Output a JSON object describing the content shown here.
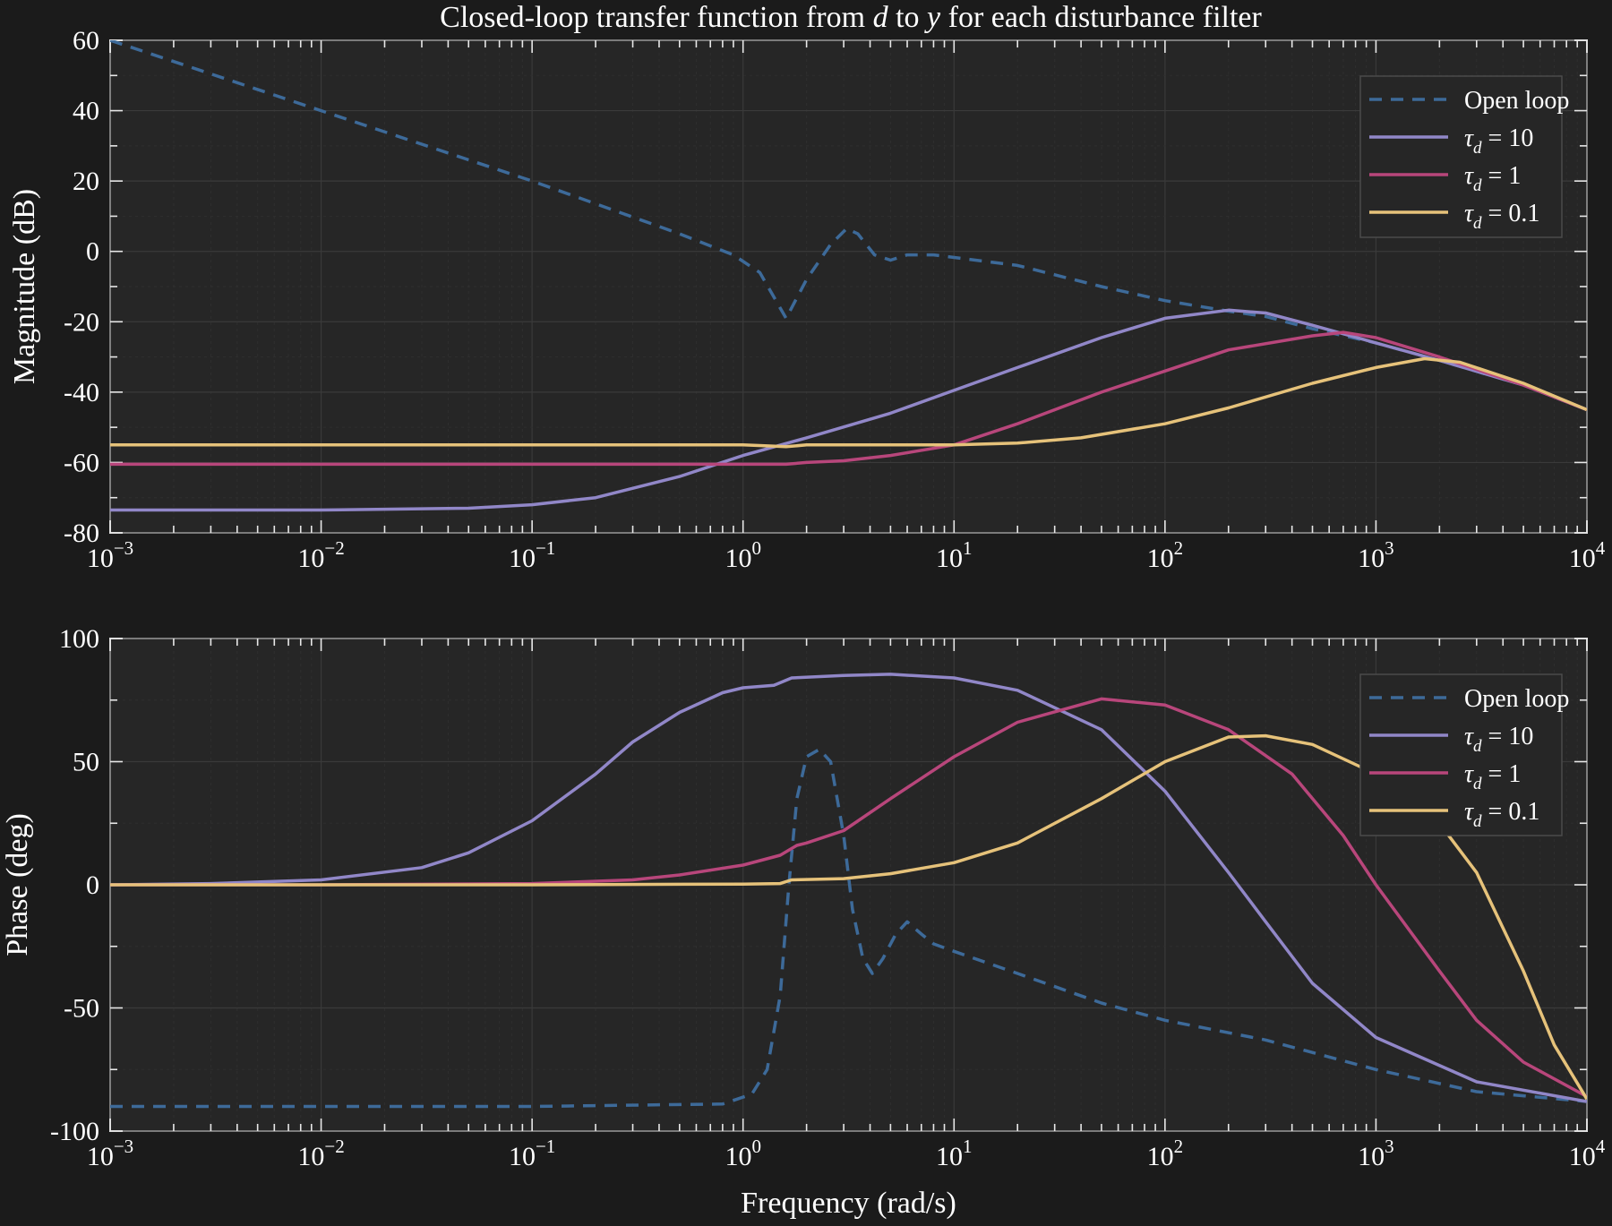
{
  "title_parts": [
    "Closed-loop transfer function from ",
    "d",
    " to ",
    "y",
    " for each disturbance filter"
  ],
  "colors": {
    "open_loop": "#3d6a99",
    "tau10": "#9187c8",
    "tau1": "#b8467b",
    "tau01": "#e6c27a"
  },
  "chart_data": [
    {
      "type": "line",
      "name": "magnitude",
      "ylabel": "Magnitude (dB)",
      "xlabel": "",
      "xscale": "log",
      "xlim": [
        0.001,
        10000
      ],
      "ylim": [
        -80,
        60
      ],
      "yticks": [
        -80,
        -60,
        -40,
        -20,
        0,
        20,
        40,
        60
      ],
      "xtick_labels": [
        {
          "base": "10",
          "exp": "−3"
        },
        {
          "base": "10",
          "exp": "−2"
        },
        {
          "base": "10",
          "exp": "−1"
        },
        {
          "base": "10",
          "exp": "0"
        },
        {
          "base": "10",
          "exp": "1"
        },
        {
          "base": "10",
          "exp": "2"
        },
        {
          "base": "10",
          "exp": "3"
        },
        {
          "base": "10",
          "exp": "4"
        }
      ],
      "grid": true,
      "legend_position": "top-right",
      "series": [
        {
          "name": "Open loop",
          "label_sym": "",
          "label_rest": "Open loop",
          "color_key": "open_loop",
          "dashed": true,
          "points": [
            [
              0.001,
              60
            ],
            [
              0.01,
              40
            ],
            [
              0.1,
              20
            ],
            [
              0.5,
              5
            ],
            [
              0.9,
              -1
            ],
            [
              1.2,
              -6
            ],
            [
              1.6,
              -19
            ],
            [
              2.0,
              -8
            ],
            [
              2.6,
              2
            ],
            [
              3.1,
              6.5
            ],
            [
              3.5,
              5
            ],
            [
              4.2,
              -1
            ],
            [
              5,
              -2.5
            ],
            [
              6,
              -1
            ],
            [
              8,
              -1
            ],
            [
              20,
              -4
            ],
            [
              50,
              -10
            ],
            [
              100,
              -14
            ],
            [
              200,
              -17
            ],
            [
              300,
              -18.5
            ],
            [
              500,
              -22
            ],
            [
              1000,
              -26
            ],
            [
              2000,
              -31
            ],
            [
              5000,
              -38
            ],
            [
              10000,
              -45
            ]
          ]
        },
        {
          "name": "τd = 10",
          "label_sym": "τ",
          "label_sub": "d",
          "label_rest": " = 10",
          "color_key": "tau10",
          "dashed": false,
          "points": [
            [
              0.001,
              -73.5
            ],
            [
              0.01,
              -73.5
            ],
            [
              0.05,
              -73
            ],
            [
              0.1,
              -72
            ],
            [
              0.2,
              -70
            ],
            [
              0.5,
              -64
            ],
            [
              1,
              -58
            ],
            [
              2,
              -53
            ],
            [
              5,
              -46
            ],
            [
              10,
              -39.5
            ],
            [
              20,
              -33
            ],
            [
              50,
              -24.5
            ],
            [
              100,
              -19
            ],
            [
              200,
              -16.7
            ],
            [
              300,
              -17.5
            ],
            [
              500,
              -21
            ],
            [
              1000,
              -26
            ],
            [
              2000,
              -31
            ],
            [
              5000,
              -38
            ],
            [
              10000,
              -45
            ]
          ]
        },
        {
          "name": "τd = 1",
          "label_sym": "τ",
          "label_sub": "d",
          "label_rest": " = 1",
          "color_key": "tau1",
          "dashed": false,
          "points": [
            [
              0.001,
              -60.5
            ],
            [
              0.1,
              -60.5
            ],
            [
              1,
              -60.5
            ],
            [
              1.6,
              -60.5
            ],
            [
              2,
              -60
            ],
            [
              3,
              -59.5
            ],
            [
              5,
              -58
            ],
            [
              10,
              -55
            ],
            [
              20,
              -49
            ],
            [
              50,
              -40
            ],
            [
              100,
              -34
            ],
            [
              200,
              -28
            ],
            [
              500,
              -24
            ],
            [
              700,
              -23
            ],
            [
              1000,
              -24.5
            ],
            [
              2000,
              -30
            ],
            [
              5000,
              -38
            ],
            [
              10000,
              -45
            ]
          ]
        },
        {
          "name": "τd = 0.1",
          "label_sym": "τ",
          "label_sub": "d",
          "label_rest": " = 0.1",
          "color_key": "tau01",
          "dashed": false,
          "points": [
            [
              0.001,
              -55
            ],
            [
              0.1,
              -55
            ],
            [
              1,
              -55
            ],
            [
              1.6,
              -55.5
            ],
            [
              2,
              -55
            ],
            [
              10,
              -55
            ],
            [
              20,
              -54.5
            ],
            [
              40,
              -53
            ],
            [
              100,
              -49
            ],
            [
              200,
              -44.5
            ],
            [
              500,
              -37.5
            ],
            [
              1000,
              -33
            ],
            [
              1700,
              -30.5
            ],
            [
              2500,
              -31.5
            ],
            [
              5000,
              -37.5
            ],
            [
              10000,
              -45
            ]
          ]
        }
      ]
    },
    {
      "type": "line",
      "name": "phase",
      "ylabel": "Phase (deg)",
      "xlabel": "Frequency (rad/s)",
      "xscale": "log",
      "xlim": [
        0.001,
        10000
      ],
      "ylim": [
        -100,
        100
      ],
      "yticks": [
        -100,
        -50,
        0,
        50,
        100
      ],
      "xtick_labels": [
        {
          "base": "10",
          "exp": "−3"
        },
        {
          "base": "10",
          "exp": "−2"
        },
        {
          "base": "10",
          "exp": "−1"
        },
        {
          "base": "10",
          "exp": "0"
        },
        {
          "base": "10",
          "exp": "1"
        },
        {
          "base": "10",
          "exp": "2"
        },
        {
          "base": "10",
          "exp": "3"
        },
        {
          "base": "10",
          "exp": "4"
        }
      ],
      "grid": true,
      "legend_position": "top-right",
      "series": [
        {
          "name": "Open loop",
          "label_sym": "",
          "label_rest": "Open loop",
          "color_key": "open_loop",
          "dashed": true,
          "points": [
            [
              0.001,
              -90
            ],
            [
              0.1,
              -90
            ],
            [
              0.8,
              -89
            ],
            [
              1.1,
              -85
            ],
            [
              1.3,
              -75
            ],
            [
              1.5,
              -45
            ],
            [
              1.65,
              0
            ],
            [
              1.8,
              35
            ],
            [
              2.0,
              52
            ],
            [
              2.3,
              55
            ],
            [
              2.6,
              50
            ],
            [
              3.0,
              20
            ],
            [
              3.3,
              -10
            ],
            [
              3.7,
              -30
            ],
            [
              4.1,
              -36
            ],
            [
              4.6,
              -30
            ],
            [
              5.3,
              -20
            ],
            [
              6,
              -15
            ],
            [
              7,
              -20
            ],
            [
              8,
              -24
            ],
            [
              10,
              -27
            ],
            [
              20,
              -36
            ],
            [
              50,
              -48
            ],
            [
              100,
              -55
            ],
            [
              300,
              -63
            ],
            [
              1000,
              -75
            ],
            [
              3000,
              -84
            ],
            [
              10000,
              -88
            ]
          ]
        },
        {
          "name": "τd = 10",
          "label_sym": "τ",
          "label_sub": "d",
          "label_rest": " = 10",
          "color_key": "tau10",
          "dashed": false,
          "points": [
            [
              0.001,
              0
            ],
            [
              0.003,
              0.5
            ],
            [
              0.01,
              2
            ],
            [
              0.03,
              7
            ],
            [
              0.05,
              13
            ],
            [
              0.1,
              26
            ],
            [
              0.2,
              45
            ],
            [
              0.3,
              58
            ],
            [
              0.5,
              70
            ],
            [
              0.8,
              78
            ],
            [
              1,
              80
            ],
            [
              1.4,
              81
            ],
            [
              1.7,
              84
            ],
            [
              3,
              85
            ],
            [
              5,
              85.5
            ],
            [
              10,
              84
            ],
            [
              20,
              79
            ],
            [
              50,
              63
            ],
            [
              100,
              38
            ],
            [
              200,
              5
            ],
            [
              300,
              -15
            ],
            [
              500,
              -40
            ],
            [
              1000,
              -62
            ],
            [
              3000,
              -80
            ],
            [
              10000,
              -88
            ]
          ]
        },
        {
          "name": "τd = 1",
          "label_sym": "τ",
          "label_sub": "d",
          "label_rest": " = 1",
          "color_key": "tau1",
          "dashed": false,
          "points": [
            [
              0.001,
              0
            ],
            [
              0.01,
              0
            ],
            [
              0.1,
              0.5
            ],
            [
              0.3,
              2
            ],
            [
              0.5,
              4
            ],
            [
              1,
              8
            ],
            [
              1.5,
              12
            ],
            [
              1.8,
              16
            ],
            [
              2,
              17
            ],
            [
              3,
              22
            ],
            [
              5,
              35
            ],
            [
              10,
              52
            ],
            [
              20,
              66
            ],
            [
              50,
              75.5
            ],
            [
              100,
              73
            ],
            [
              200,
              63
            ],
            [
              400,
              45
            ],
            [
              700,
              20
            ],
            [
              1000,
              0
            ],
            [
              2000,
              -35
            ],
            [
              3000,
              -55
            ],
            [
              5000,
              -72
            ],
            [
              10000,
              -86
            ]
          ]
        },
        {
          "name": "τd = 0.1",
          "label_sym": "τ",
          "label_sub": "d",
          "label_rest": " = 0.1",
          "color_key": "tau01",
          "dashed": false,
          "points": [
            [
              0.001,
              0
            ],
            [
              0.1,
              0
            ],
            [
              1,
              0.3
            ],
            [
              1.5,
              0.5
            ],
            [
              1.7,
              2
            ],
            [
              3,
              2.5
            ],
            [
              5,
              4.5
            ],
            [
              10,
              9
            ],
            [
              20,
              17
            ],
            [
              50,
              35
            ],
            [
              100,
              50
            ],
            [
              200,
              60
            ],
            [
              300,
              60.5
            ],
            [
              500,
              57
            ],
            [
              1000,
              45
            ],
            [
              2000,
              25
            ],
            [
              3000,
              5
            ],
            [
              5000,
              -35
            ],
            [
              7000,
              -65
            ],
            [
              10000,
              -87
            ]
          ]
        }
      ]
    }
  ]
}
